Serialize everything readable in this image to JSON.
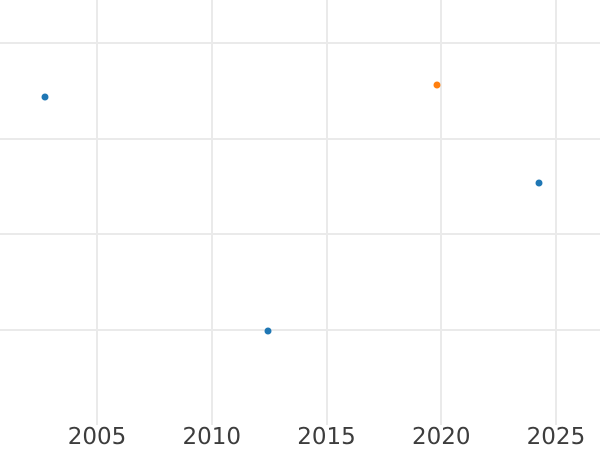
{
  "page": {
    "background": "#ffffff"
  },
  "chart_data": {
    "type": "scatter",
    "title": "",
    "xlabel": "",
    "ylabel": "",
    "grid": true,
    "legend_position": "none",
    "x_range": [
      2000.77,
      2026.92
    ],
    "y_range": [
      0,
      4.455
    ],
    "x_ticks": [
      {
        "value": 2005,
        "label": "2005"
      },
      {
        "value": 2010,
        "label": "2010"
      },
      {
        "value": 2015,
        "label": "2015"
      },
      {
        "value": 2020,
        "label": "2020"
      },
      {
        "value": 2025,
        "label": "2025"
      }
    ],
    "y_gridlines": [
      1,
      2,
      3,
      4
    ],
    "y_tick_labels_visible": false,
    "series": [
      {
        "name": "blue",
        "color": "#1f77b4",
        "points": [
          {
            "x": 2002.75,
            "y": 3.44
          },
          {
            "x": 2012.45,
            "y": 0.99
          },
          {
            "x": 2024.25,
            "y": 2.54
          }
        ]
      },
      {
        "name": "orange",
        "color": "#ff7f0e",
        "points": [
          {
            "x": 2019.8,
            "y": 3.57
          }
        ]
      }
    ]
  },
  "styles": {
    "grid_color": "#eaeaea",
    "tick_label_color": "#3d3d3d"
  }
}
